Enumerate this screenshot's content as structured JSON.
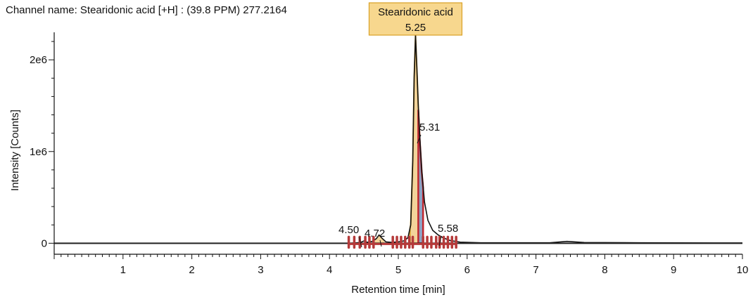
{
  "channel_label": "Channel name: Stearidonic acid [+H] : (39.8 PPM) 277.2164",
  "chart_data": {
    "type": "line",
    "xlabel": "Retention time [min]",
    "ylabel": "Intensity [Counts]",
    "xlim": [
      0,
      10
    ],
    "ylim": [
      -120000,
      2300000
    ],
    "x_ticks": [
      1,
      2,
      3,
      4,
      5,
      6,
      7,
      8,
      9,
      10
    ],
    "y_ticks": [
      0,
      1000000,
      2000000
    ],
    "y_tick_labels": [
      "0",
      "1e6",
      "2e6"
    ],
    "grid": false,
    "series": [
      {
        "x": [
          0,
          4.3,
          4.45,
          4.5,
          4.55,
          4.62,
          4.68,
          4.72,
          4.77,
          4.82,
          4.9,
          5.0,
          5.08,
          5.14,
          5.18,
          5.21,
          5.23,
          5.25,
          5.27,
          5.29,
          5.31,
          5.34,
          5.38,
          5.43,
          5.5,
          5.58,
          5.65,
          5.75,
          5.9,
          6.2,
          7.2,
          7.45,
          7.7,
          8.5,
          10
        ],
        "y": [
          0,
          0,
          8000,
          25000,
          10000,
          20000,
          50000,
          90000,
          50000,
          15000,
          10000,
          15000,
          25000,
          60000,
          200000,
          900000,
          1800000,
          2270000,
          1900000,
          1500000,
          1180000,
          800000,
          450000,
          250000,
          140000,
          90000,
          60000,
          30000,
          12000,
          5000,
          5000,
          20000,
          8000,
          5000,
          3000
        ]
      }
    ],
    "peaks": [
      {
        "rt": 5.25,
        "name": "Stearidonic acid",
        "rt_label": "5.25",
        "height": 2270000
      },
      {
        "rt": 5.31,
        "rt_label": "5.31",
        "height": 1180000
      },
      {
        "rt": 4.5,
        "rt_label": "4.50",
        "height": 25000
      },
      {
        "rt": 4.72,
        "rt_label": "4.72",
        "height": 90000
      },
      {
        "rt": 5.58,
        "rt_label": "5.58",
        "height": 90000
      }
    ],
    "integration_markers_rt": [
      4.28,
      4.36,
      4.44,
      4.52,
      4.58,
      4.64,
      4.92,
      4.98,
      5.04,
      5.1,
      5.16,
      5.21,
      5.36,
      5.42,
      5.48,
      5.55,
      5.6,
      5.66,
      5.72,
      5.78,
      5.84
    ],
    "colors": {
      "trace": "#111111",
      "main_peak_fill": "#f3d49a",
      "main_peak_outline": "#d9a126",
      "sub_peak_fill": "#8ea3c4",
      "sub_peak_outline": "#c0282f",
      "integration_marker": "#b53a3a",
      "callout_fill": "#f7d78e",
      "callout_border": "#d9a126"
    }
  }
}
